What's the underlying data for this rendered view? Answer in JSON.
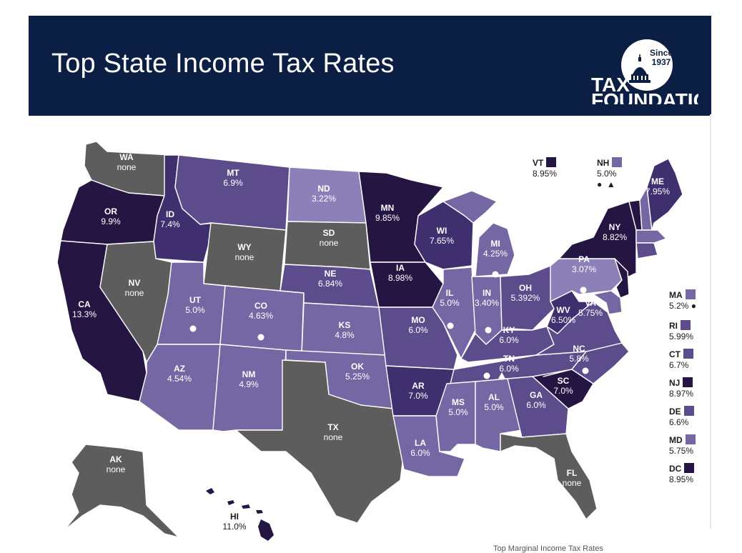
{
  "title": "Top State Income Tax Rates",
  "logo": {
    "since": "Since",
    "year": "1937",
    "line1": "TAX",
    "line2": "FOUNDATION"
  },
  "colors": {
    "header_bg": "#0b1f45",
    "none": "#5d5d5d",
    "rate_scale": [
      "#8d80b8",
      "#7467a3",
      "#5c4c8c",
      "#3f2f6f",
      "#241543"
    ]
  },
  "states": {
    "WA": {
      "abbr": "WA",
      "rate": "none"
    },
    "OR": {
      "abbr": "OR",
      "rate": "9.9%"
    },
    "CA": {
      "abbr": "CA",
      "rate": "13.3%"
    },
    "ID": {
      "abbr": "ID",
      "rate": "7.4%"
    },
    "NV": {
      "abbr": "NV",
      "rate": "none"
    },
    "MT": {
      "abbr": "MT",
      "rate": "6.9%"
    },
    "WY": {
      "abbr": "WY",
      "rate": "none"
    },
    "UT": {
      "abbr": "UT",
      "rate": "5.0%"
    },
    "AZ": {
      "abbr": "AZ",
      "rate": "4.54%"
    },
    "CO": {
      "abbr": "CO",
      "rate": "4.63%"
    },
    "NM": {
      "abbr": "NM",
      "rate": "4.9%"
    },
    "ND": {
      "abbr": "ND",
      "rate": "3.22%"
    },
    "SD": {
      "abbr": "SD",
      "rate": "none"
    },
    "NE": {
      "abbr": "NE",
      "rate": "6.84%"
    },
    "KS": {
      "abbr": "KS",
      "rate": "4.8%"
    },
    "OK": {
      "abbr": "OK",
      "rate": "5.25%"
    },
    "TX": {
      "abbr": "TX",
      "rate": "none"
    },
    "MN": {
      "abbr": "MN",
      "rate": "9.85%"
    },
    "IA": {
      "abbr": "IA",
      "rate": "8.98%"
    },
    "MO": {
      "abbr": "MO",
      "rate": "6.0%"
    },
    "AR": {
      "abbr": "AR",
      "rate": "7.0%"
    },
    "LA": {
      "abbr": "LA",
      "rate": "6.0%"
    },
    "WI": {
      "abbr": "WI",
      "rate": "7.65%"
    },
    "IL": {
      "abbr": "IL",
      "rate": "5.0%"
    },
    "MI": {
      "abbr": "MI",
      "rate": "4.25%"
    },
    "IN": {
      "abbr": "IN",
      "rate": "3.40%"
    },
    "OH": {
      "abbr": "OH",
      "rate": "5.392%"
    },
    "KY": {
      "abbr": "KY",
      "rate": "6.0%"
    },
    "TN": {
      "abbr": "TN",
      "rate": "6.0%"
    },
    "MS": {
      "abbr": "MS",
      "rate": "5.0%"
    },
    "AL": {
      "abbr": "AL",
      "rate": "5.0%"
    },
    "GA": {
      "abbr": "GA",
      "rate": "6.0%"
    },
    "FL": {
      "abbr": "FL",
      "rate": "none"
    },
    "SC": {
      "abbr": "SC",
      "rate": "7.0%"
    },
    "NC": {
      "abbr": "NC",
      "rate": "5.8%"
    },
    "VA": {
      "abbr": "VA",
      "rate": "5.75%"
    },
    "WV": {
      "abbr": "WV",
      "rate": "6.50%"
    },
    "PA": {
      "abbr": "PA",
      "rate": "3.07%"
    },
    "NY": {
      "abbr": "NY",
      "rate": "8.82%"
    },
    "ME": {
      "abbr": "ME",
      "rate": "7.95%"
    },
    "AK": {
      "abbr": "AK",
      "rate": "none"
    },
    "HI": {
      "abbr": "HI",
      "rate": "11.0%"
    }
  },
  "callouts": {
    "VT": {
      "abbr": "VT",
      "rate": "8.95%"
    },
    "NH": {
      "abbr": "NH",
      "rate": "5.0%"
    },
    "MA": {
      "abbr": "MA",
      "rate": "5.2%"
    },
    "RI": {
      "abbr": "RI",
      "rate": "5.99%"
    },
    "CT": {
      "abbr": "CT",
      "rate": "6.7%"
    },
    "NJ": {
      "abbr": "NJ",
      "rate": "8.97%"
    },
    "DE": {
      "abbr": "DE",
      "rate": "6.6%"
    },
    "MD": {
      "abbr": "MD",
      "rate": "5.75%"
    },
    "DC": {
      "abbr": "DC",
      "rate": "8.95%"
    }
  },
  "footer_text": "Top Marginal Income Tax Rates"
}
